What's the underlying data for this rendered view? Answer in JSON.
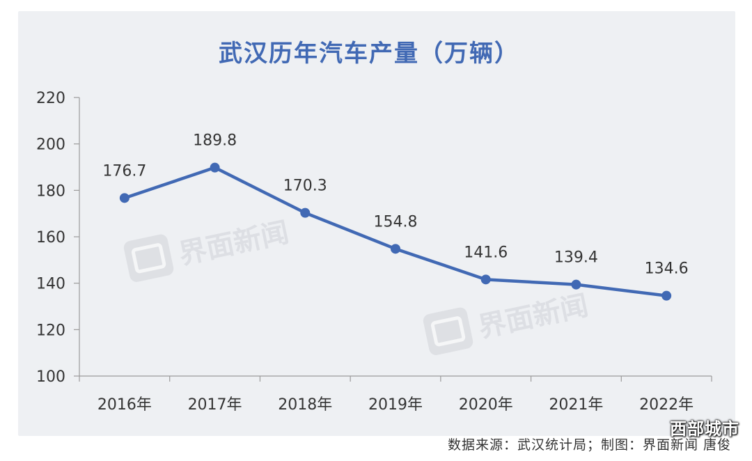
{
  "chart_data": {
    "type": "line",
    "title": "武汉历年汽车产量（万辆）",
    "categories": [
      "2016年",
      "2017年",
      "2018年",
      "2019年",
      "2020年",
      "2021年",
      "2022年"
    ],
    "values": [
      176.7,
      189.8,
      170.3,
      154.8,
      141.6,
      139.4,
      134.6
    ],
    "data_labels": [
      "176.7",
      "189.8",
      "170.3",
      "154.8",
      "141.6",
      "139.4",
      "134.6"
    ],
    "ylim": [
      100,
      220
    ],
    "yticks": [
      100,
      120,
      140,
      160,
      180,
      200,
      220
    ],
    "xlabel": "",
    "ylabel": "",
    "grid": false,
    "legend": "none",
    "line_color": "#4169b4",
    "title_color": "#4169b4"
  },
  "source_text": "数据来源：武汉统计局；制图：界面新闻 唐俊",
  "watermark_logo": "界面新闻",
  "corner_watermark": "西部城市"
}
